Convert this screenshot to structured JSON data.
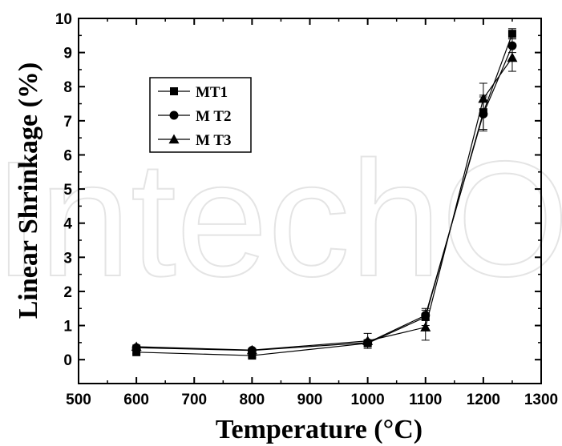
{
  "watermark": "IntechOpen",
  "chart_data": {
    "type": "line",
    "xlabel": "Temperature (°C)",
    "ylabel": "Linear Shrinkage (%)",
    "xlim": [
      500,
      1300
    ],
    "ylim": [
      -0.7,
      10
    ],
    "x_ticks": [
      500,
      600,
      700,
      800,
      900,
      1000,
      1100,
      1200,
      1300
    ],
    "y_ticks": [
      0,
      1,
      2,
      3,
      4,
      5,
      6,
      7,
      8,
      9,
      10
    ],
    "x": [
      600,
      800,
      1000,
      1100,
      1200,
      1250
    ],
    "legend_position": "upper-left",
    "grid": false,
    "series": [
      {
        "name": "MT1",
        "marker": "square",
        "values": [
          0.22,
          0.12,
          0.48,
          1.25,
          7.25,
          9.55
        ],
        "errors": [
          0.05,
          0.05,
          0.08,
          0.25,
          0.5,
          0.15
        ]
      },
      {
        "name": "M T2",
        "marker": "circle",
        "values": [
          0.35,
          0.27,
          0.5,
          1.3,
          7.2,
          9.2
        ],
        "errors": [
          0.05,
          0.05,
          0.08,
          0.15,
          0.5,
          0.2
        ]
      },
      {
        "name": "M T3",
        "marker": "triangle",
        "values": [
          0.38,
          0.28,
          0.55,
          0.95,
          7.65,
          8.85
        ],
        "errors": [
          0.05,
          0.05,
          0.22,
          0.38,
          0.45,
          0.4
        ]
      }
    ]
  }
}
